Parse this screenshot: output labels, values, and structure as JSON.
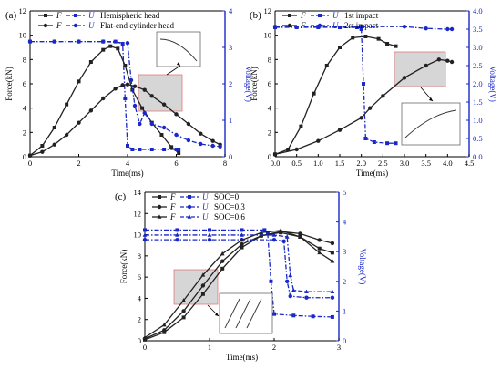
{
  "colors": {
    "force": "#222222",
    "voltage": "#1a28c8",
    "box": "#c8c8c8",
    "box_edge": "#e27a7a"
  },
  "chart_data": [
    {
      "panel": "(a)",
      "type": "line",
      "xlabel": "Time(ms)",
      "ylabel": "Force(kN)",
      "y2label": "Voltage(V)",
      "xlim": [
        0,
        8
      ],
      "ylim": [
        0,
        12
      ],
      "y2lim": [
        0,
        4
      ],
      "xticks": [
        "0",
        "2",
        "4",
        "6",
        "8"
      ],
      "yticks": [
        "0",
        "2",
        "4",
        "6",
        "8",
        "10",
        "12"
      ],
      "y2ticks": [
        "0",
        "1",
        "2",
        "3",
        "4"
      ],
      "legend": [
        {
          "f": "F",
          "u": "U",
          "label": "Hemispheric head",
          "marker": "square"
        },
        {
          "f": "F",
          "u": "U",
          "label": "Flat-end cylinder head",
          "marker": "circle"
        }
      ],
      "series": [
        {
          "type": "force",
          "marker": "square",
          "x": [
            0,
            0.5,
            1,
            1.5,
            2,
            2.5,
            3,
            3.3,
            3.6,
            3.9,
            4.2,
            4.6,
            5,
            5.4,
            5.8,
            6.1
          ],
          "y": [
            0.1,
            0.9,
            2.4,
            4.3,
            6.2,
            7.8,
            8.8,
            9.1,
            8.9,
            7.5,
            5.5,
            4,
            2.8,
            1.8,
            0.8,
            0.3
          ]
        },
        {
          "type": "voltage",
          "marker": "square",
          "x": [
            0,
            1,
            2,
            3,
            3.5,
            3.8,
            3.9,
            4,
            4.2,
            4.5,
            5,
            5.5,
            6,
            6.1
          ],
          "y": [
            3.16,
            3.16,
            3.16,
            3.16,
            3.16,
            3.1,
            1.6,
            0.3,
            0.2,
            0.2,
            0.2,
            0.2,
            0.2,
            0.2
          ]
        },
        {
          "type": "force",
          "marker": "circle",
          "x": [
            0,
            0.5,
            1,
            1.5,
            2,
            2.5,
            3,
            3.5,
            3.8,
            4,
            4.3,
            4.7,
            5,
            5.5,
            6,
            6.5,
            7,
            7.5,
            7.8
          ],
          "y": [
            0.1,
            0.4,
            1,
            1.8,
            2.8,
            3.8,
            4.8,
            5.6,
            5.9,
            5.95,
            5.8,
            5.5,
            5,
            4.3,
            3.5,
            2.7,
            1.9,
            1.3,
            1.0
          ]
        },
        {
          "type": "voltage",
          "marker": "circle",
          "x": [
            0,
            1,
            2,
            3,
            4,
            4.15,
            4.3,
            4.5,
            4.7,
            5,
            5.5,
            6,
            6.5,
            7,
            7.5,
            7.8
          ],
          "y": [
            3.16,
            3.16,
            3.16,
            3.16,
            3.12,
            2.1,
            1.4,
            0.9,
            1.2,
            0.9,
            0.8,
            0.6,
            0.45,
            0.35,
            0.3,
            0.28
          ]
        }
      ]
    },
    {
      "panel": "(b)",
      "type": "line",
      "xlabel": "Time(ms)",
      "ylabel": "Force(kN)",
      "y2label": "Voltage(V)",
      "xlim": [
        0,
        4.5
      ],
      "ylim": [
        0,
        12
      ],
      "y2lim": [
        0,
        4
      ],
      "xticks": [
        "0.0",
        "0.5",
        "1.0",
        "1.5",
        "2.0",
        "2.5",
        "3.0",
        "3.5",
        "4.0",
        "4.5"
      ],
      "yticks": [
        "0",
        "2",
        "4",
        "6",
        "8",
        "10",
        "12"
      ],
      "y2ticks": [
        "0.0",
        "0.5",
        "1.0",
        "1.5",
        "2.0",
        "2.5",
        "3.0",
        "3.5",
        "4.0"
      ],
      "legend": [
        {
          "f": "F",
          "u": "U",
          "label": "1st impact",
          "marker": "square"
        },
        {
          "f": "F",
          "u": "U",
          "label": "2st impact",
          "marker": "circle"
        }
      ],
      "series": [
        {
          "type": "force",
          "marker": "square",
          "x": [
            0,
            0.3,
            0.6,
            0.9,
            1.2,
            1.5,
            1.8,
            2.1,
            2.4,
            2.6,
            2.8
          ],
          "y": [
            0.2,
            0.6,
            2.5,
            5.2,
            7.5,
            9,
            9.8,
            9.9,
            9.7,
            9.3,
            9.1
          ]
        },
        {
          "type": "voltage",
          "marker": "square",
          "x": [
            0,
            0.5,
            1,
            1.5,
            1.9,
            2.0,
            2.05,
            2.1,
            2.3,
            2.6,
            2.8
          ],
          "y": [
            3.55,
            3.55,
            3.55,
            3.55,
            3.55,
            3.5,
            2.0,
            0.5,
            0.4,
            0.37,
            0.37
          ]
        },
        {
          "type": "force",
          "marker": "circle",
          "x": [
            0,
            0.5,
            1,
            1.5,
            2,
            2.2,
            2.5,
            3,
            3.5,
            3.8,
            4.0,
            4.1
          ],
          "y": [
            0.2,
            0.6,
            1.3,
            2.2,
            3.2,
            4,
            5,
            6.5,
            7.5,
            8,
            7.9,
            7.8
          ]
        },
        {
          "type": "voltage",
          "marker": "circle",
          "x": [
            0,
            1,
            2,
            3,
            3.5,
            4.0,
            4.1
          ],
          "y": [
            3.57,
            3.57,
            3.57,
            3.57,
            3.52,
            3.5,
            3.5
          ]
        }
      ]
    },
    {
      "panel": "(c)",
      "type": "line",
      "xlabel": "Time(ms)",
      "ylabel": "Force(kN)",
      "y2label": "Voltage(V)",
      "xlim": [
        0,
        3
      ],
      "ylim": [
        0,
        14
      ],
      "y2lim": [
        0,
        5
      ],
      "xticks": [
        "0",
        "1",
        "2",
        "3"
      ],
      "yticks": [
        "0",
        "2",
        "4",
        "6",
        "8",
        "10",
        "12",
        "14"
      ],
      "y2ticks": [
        "0",
        "1",
        "2",
        "3",
        "4",
        "5"
      ],
      "legend": [
        {
          "f": "F",
          "u": "U",
          "label": "SOC=0",
          "marker": "square"
        },
        {
          "f": "F",
          "u": "U",
          "label": "SOC=0.3",
          "marker": "circle"
        },
        {
          "f": "F",
          "u": "U",
          "label": "SOC=0.6",
          "marker": "triangle"
        }
      ],
      "series": [
        {
          "type": "force",
          "marker": "square",
          "x": [
            0,
            0.3,
            0.6,
            0.9,
            1.2,
            1.5,
            1.8,
            2.1,
            2.4,
            2.7,
            2.9
          ],
          "y": [
            0.1,
            0.8,
            2.2,
            4.4,
            6.8,
            8.8,
            9.9,
            10.2,
            9.8,
            8.7,
            8.3
          ]
        },
        {
          "type": "voltage",
          "marker": "square",
          "x": [
            0,
            0.5,
            1,
            1.5,
            1.85,
            1.9,
            1.95,
            2.0,
            2.3,
            2.6,
            2.9
          ],
          "y": [
            3.73,
            3.73,
            3.73,
            3.73,
            3.73,
            3.6,
            2.0,
            0.9,
            0.85,
            0.82,
            0.8
          ]
        },
        {
          "type": "force",
          "marker": "circle",
          "x": [
            0,
            0.3,
            0.6,
            0.9,
            1.2,
            1.5,
            1.8,
            2.1,
            2.4,
            2.7,
            2.9
          ],
          "y": [
            0.2,
            1,
            2.8,
            5.2,
            7.5,
            9.1,
            9.9,
            10.3,
            10.1,
            9.5,
            9.2
          ]
        },
        {
          "type": "voltage",
          "marker": "circle",
          "x": [
            0,
            0.5,
            1,
            1.5,
            2,
            2.15,
            2.2,
            2.25,
            2.5,
            2.9
          ],
          "y": [
            3.4,
            3.4,
            3.4,
            3.4,
            3.4,
            3.35,
            2.0,
            1.5,
            1.45,
            1.45
          ]
        },
        {
          "type": "force",
          "marker": "triangle",
          "x": [
            0,
            0.3,
            0.6,
            0.9,
            1.2,
            1.5,
            1.8,
            2.1,
            2.4,
            2.7,
            2.9
          ],
          "y": [
            0.3,
            1.5,
            3.8,
            6.2,
            8.2,
            9.5,
            10.2,
            10.4,
            9.8,
            8.3,
            7.5
          ]
        },
        {
          "type": "voltage",
          "marker": "triangle",
          "x": [
            0,
            0.5,
            1,
            1.5,
            2,
            2.2,
            2.25,
            2.3,
            2.5,
            2.9
          ],
          "y": [
            3.56,
            3.56,
            3.56,
            3.56,
            3.56,
            3.5,
            2.2,
            1.7,
            1.65,
            1.65
          ]
        }
      ]
    }
  ]
}
